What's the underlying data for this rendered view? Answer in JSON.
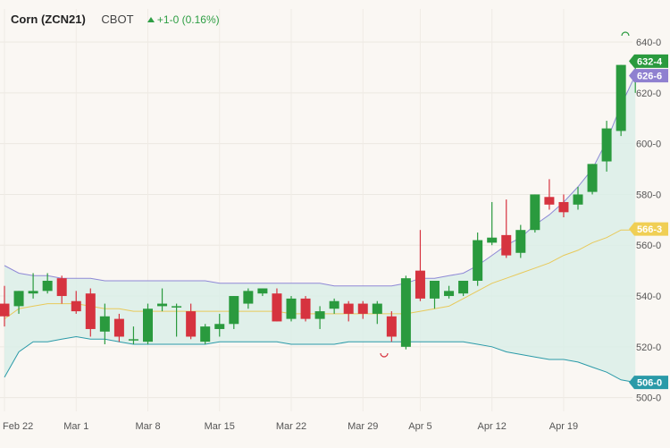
{
  "header": {
    "symbol": "Corn (ZCN21)",
    "exchange": "CBOT",
    "change": "+1-0 (0.16%)"
  },
  "colors": {
    "background": "#faf7f3",
    "up": "#2a9a3e",
    "down": "#d6333f",
    "band_fill": "#dbeee8",
    "band_upper": "#8f89d6",
    "band_lower": "#2a9aa8",
    "band_mid": "#e8c95a",
    "badge_last": "#2a9a3e",
    "badge_upper": "#8f80d0",
    "badge_mid": "#f0cf55",
    "badge_lower": "#2a9aa8"
  },
  "chart_data": {
    "type": "candlestick",
    "title": "Corn (ZCN21)",
    "ylim": [
      496,
      646
    ],
    "y_ticks": [
      "640-0",
      "620-0",
      "600-0",
      "580-0",
      "560-0",
      "540-0",
      "520-0",
      "500-0"
    ],
    "x_ticks": [
      "Feb 22",
      "Mar 1",
      "Mar 8",
      "Mar 15",
      "Mar 22",
      "Mar 29",
      "Apr 5",
      "Apr 12",
      "Apr 19"
    ],
    "price_labels": {
      "last": "632-4",
      "upper_band": "626-6",
      "middle_band": "566-3",
      "lower_band": "506-0"
    },
    "candles": [
      {
        "date": "Feb 22",
        "open": 537,
        "high": 544,
        "low": 528,
        "close": 532
      },
      {
        "date": "Feb 23",
        "open": 536,
        "high": 542,
        "low": 533,
        "close": 542
      },
      {
        "date": "Feb 24",
        "open": 541,
        "high": 549,
        "low": 539,
        "close": 542
      },
      {
        "date": "Feb 25",
        "open": 542,
        "high": 549,
        "low": 541,
        "close": 546
      },
      {
        "date": "Feb 26",
        "open": 547,
        "high": 548,
        "low": 537,
        "close": 540
      },
      {
        "date": "Mar 1",
        "open": 538,
        "high": 542,
        "low": 533,
        "close": 534
      },
      {
        "date": "Mar 2",
        "open": 541,
        "high": 543,
        "low": 524,
        "close": 527
      },
      {
        "date": "Mar 3",
        "open": 526,
        "high": 537,
        "low": 521,
        "close": 532
      },
      {
        "date": "Mar 4",
        "open": 531,
        "high": 533,
        "low": 522,
        "close": 524
      },
      {
        "date": "Mar 5",
        "open": 523,
        "high": 528,
        "low": 521,
        "close": 523
      },
      {
        "date": "Mar 8",
        "open": 522,
        "high": 537,
        "low": 521,
        "close": 535
      },
      {
        "date": "Mar 9",
        "open": 536,
        "high": 543,
        "low": 534,
        "close": 537
      },
      {
        "date": "Mar 10",
        "open": 536,
        "high": 537,
        "low": 524,
        "close": 536
      },
      {
        "date": "Mar 11",
        "open": 534,
        "high": 537,
        "low": 523,
        "close": 524
      },
      {
        "date": "Mar 12",
        "open": 522,
        "high": 529,
        "low": 521,
        "close": 528
      },
      {
        "date": "Mar 15",
        "open": 527,
        "high": 533,
        "low": 524,
        "close": 529
      },
      {
        "date": "Mar 16",
        "open": 529,
        "high": 540,
        "low": 527,
        "close": 540
      },
      {
        "date": "Mar 17",
        "open": 537,
        "high": 543,
        "low": 535,
        "close": 542
      },
      {
        "date": "Mar 18",
        "open": 541,
        "high": 543,
        "low": 540,
        "close": 543
      },
      {
        "date": "Mar 19",
        "open": 541,
        "high": 543,
        "low": 530,
        "close": 530
      },
      {
        "date": "Mar 22",
        "open": 531,
        "high": 540,
        "low": 530,
        "close": 539
      },
      {
        "date": "Mar 23",
        "open": 539,
        "high": 540,
        "low": 530,
        "close": 531
      },
      {
        "date": "Mar 24",
        "open": 531,
        "high": 536,
        "low": 527,
        "close": 534
      },
      {
        "date": "Mar 25",
        "open": 535,
        "high": 539,
        "low": 533,
        "close": 538
      },
      {
        "date": "Mar 26",
        "open": 537,
        "high": 538,
        "low": 530,
        "close": 533
      },
      {
        "date": "Mar 29",
        "open": 537,
        "high": 538,
        "low": 531,
        "close": 533
      },
      {
        "date": "Mar 30",
        "open": 533,
        "high": 538,
        "low": 529,
        "close": 537
      },
      {
        "date": "Mar 31",
        "open": 532,
        "high": 534,
        "low": 522,
        "close": 524
      },
      {
        "date": "Apr 1",
        "open": 520,
        "high": 548,
        "low": 519,
        "close": 547
      },
      {
        "date": "Apr 5",
        "open": 550,
        "high": 566,
        "low": 538,
        "close": 539
      },
      {
        "date": "Apr 6",
        "open": 539,
        "high": 545,
        "low": 535,
        "close": 546
      },
      {
        "date": "Apr 7",
        "open": 540,
        "high": 544,
        "low": 539,
        "close": 542
      },
      {
        "date": "Apr 8",
        "open": 541,
        "high": 545,
        "low": 540,
        "close": 546
      },
      {
        "date": "Apr 9",
        "open": 546,
        "high": 565,
        "low": 544,
        "close": 562
      },
      {
        "date": "Apr 12",
        "open": 561,
        "high": 577,
        "low": 560,
        "close": 563
      },
      {
        "date": "Apr 13",
        "open": 564,
        "high": 578,
        "low": 555,
        "close": 556
      },
      {
        "date": "Apr 14",
        "open": 557,
        "high": 568,
        "low": 555,
        "close": 566
      },
      {
        "date": "Apr 15",
        "open": 566,
        "high": 580,
        "low": 565,
        "close": 580
      },
      {
        "date": "Apr 16",
        "open": 579,
        "high": 586,
        "low": 574,
        "close": 576
      },
      {
        "date": "Apr 19",
        "open": 577,
        "high": 580,
        "low": 571,
        "close": 573
      },
      {
        "date": "Apr 20",
        "open": 576,
        "high": 583,
        "low": 574,
        "close": 580
      },
      {
        "date": "Apr 21",
        "open": 581,
        "high": 592,
        "low": 580,
        "close": 592
      },
      {
        "date": "Apr 22",
        "open": 593,
        "high": 609,
        "low": 589,
        "close": 606
      },
      {
        "date": "Apr 23",
        "open": 605,
        "high": 631,
        "low": 603,
        "close": 631
      },
      {
        "date": "Apr 26",
        "open": 632,
        "high": 633,
        "low": 620,
        "close": 632
      }
    ],
    "bands": {
      "upper": [
        552,
        549,
        548,
        548,
        547,
        547,
        547,
        546,
        546,
        546,
        546,
        546,
        546,
        546,
        546,
        545,
        545,
        545,
        545,
        545,
        545,
        545,
        545,
        544,
        544,
        544,
        544,
        544,
        545,
        547,
        547,
        548,
        549,
        552,
        556,
        560,
        563,
        568,
        572,
        577,
        583,
        590,
        601,
        615,
        627
      ],
      "middle": [
        531,
        535,
        536,
        537,
        537,
        537,
        536,
        535,
        535,
        534,
        534,
        534,
        534,
        534,
        534,
        534,
        534,
        534,
        534,
        534,
        533,
        533,
        533,
        533,
        533,
        533,
        533,
        533,
        533,
        534,
        535,
        536,
        539,
        542,
        545,
        547,
        549,
        551,
        553,
        556,
        558,
        561,
        563,
        566,
        566
      ],
      "lower": [
        508,
        518,
        522,
        522,
        523,
        524,
        523,
        523,
        522,
        521,
        521,
        521,
        521,
        521,
        521,
        522,
        522,
        522,
        522,
        522,
        521,
        521,
        521,
        521,
        522,
        522,
        522,
        522,
        522,
        522,
        522,
        522,
        522,
        521,
        520,
        518,
        517,
        516,
        515,
        515,
        514,
        512,
        510,
        507,
        506
      ]
    }
  }
}
